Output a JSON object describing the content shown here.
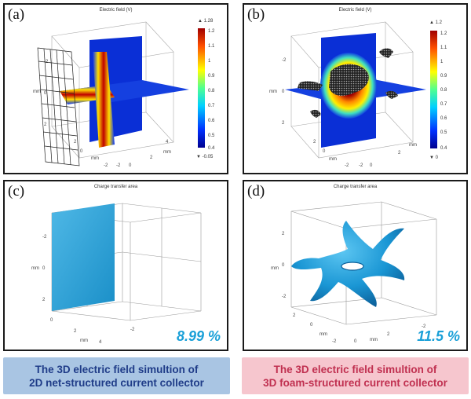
{
  "panels": {
    "a": {
      "label": "(a)",
      "title": "Electric field (V)",
      "colorbar": {
        "max_marker": "▲ 1.28",
        "min_marker": "▼ -0.05",
        "ticks": [
          "1.2",
          "1.1",
          "1",
          "0.9",
          "0.8",
          "0.7",
          "0.6",
          "0.5",
          "0.4"
        ]
      },
      "axis_ticks": [
        "-2",
        "0",
        "2",
        "mm",
        "2",
        "0",
        "mm",
        "-2",
        "0",
        "2",
        "4",
        "mm",
        "-2"
      ]
    },
    "b": {
      "label": "(b)",
      "title": "Electric field (V)",
      "colorbar": {
        "max_marker": "▲ 1.2",
        "min_marker": "▼ 0",
        "ticks": [
          "1.2",
          "1.1",
          "1",
          "0.9",
          "0.8",
          "0.7",
          "0.6",
          "0.5",
          "0.4"
        ]
      },
      "axis_ticks": [
        "-2",
        "0",
        "2",
        "mm",
        "2",
        "0",
        "mm",
        "-2",
        "0",
        "2",
        "mm",
        "-2"
      ]
    },
    "c": {
      "label": "(c)",
      "title": "Charge transfer area",
      "percentage": "8.99 %",
      "axis_ticks": [
        "-2",
        "0",
        "2",
        "mm",
        "0",
        "2",
        "4",
        "mm",
        "-2"
      ]
    },
    "d": {
      "label": "(d)",
      "title": "Charge transfer area",
      "percentage": "11.5 %",
      "axis_ticks": [
        "2",
        "0",
        "-2",
        "mm",
        "2",
        "0",
        "mm",
        "-2",
        "0",
        "2",
        "mm",
        "-2"
      ]
    }
  },
  "banners": {
    "left": {
      "line1": "The 3D electric field simultion of",
      "line2": "2D net-structured current collector",
      "color": "#a9c5e3"
    },
    "right": {
      "line1": "The 3D electric field simultion of",
      "line2": "3D foam-structured current collector",
      "color": "#f6c6ce"
    }
  }
}
